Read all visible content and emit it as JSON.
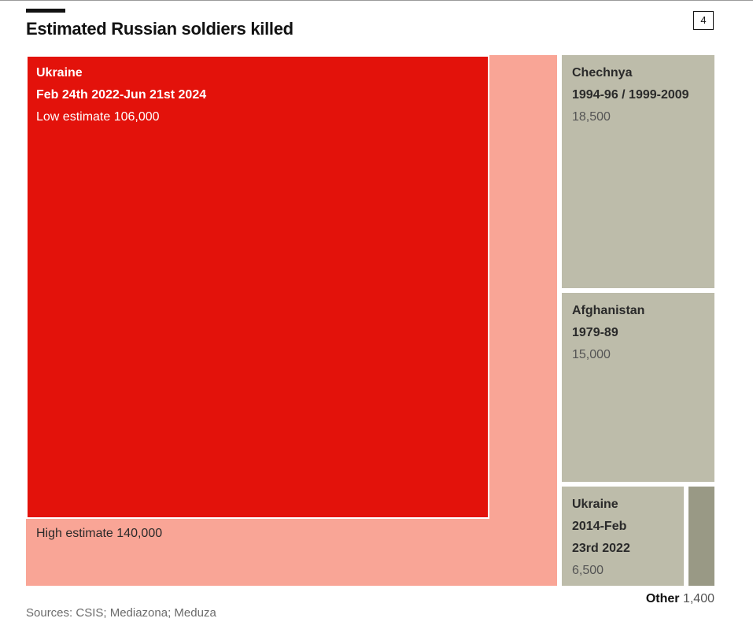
{
  "chart_data": {
    "type": "treemap",
    "title": "Estimated Russian soldiers killed",
    "page_number": "4",
    "source": "Sources: CSIS; Mediazona; Meduza",
    "items": [
      {
        "name": "Ukraine",
        "period": "Feb 24th 2022-Jun 21st 2024",
        "low_label": "Low estimate",
        "low_value": 106000,
        "low_text": "106,000",
        "high_label": "High estimate",
        "high_value": 140000,
        "high_text": "140,000"
      },
      {
        "name": "Chechnya",
        "period": "1994-96 / 1999-2009",
        "value": 18500,
        "value_text": "18,500"
      },
      {
        "name": "Afghanistan",
        "period": "1979-89",
        "value": 15000,
        "value_text": "15,000"
      },
      {
        "name": "Ukraine",
        "period_line1": "2014-Feb",
        "period_line2": "23rd 2022",
        "value": 6500,
        "value_text": "6,500"
      },
      {
        "name": "Other",
        "value": 1400,
        "value_text": "1,400"
      }
    ],
    "colors": {
      "high": "#f9a596",
      "low": "#e3120b",
      "other_wars": "#bdbcaa",
      "other": "#999985"
    }
  }
}
